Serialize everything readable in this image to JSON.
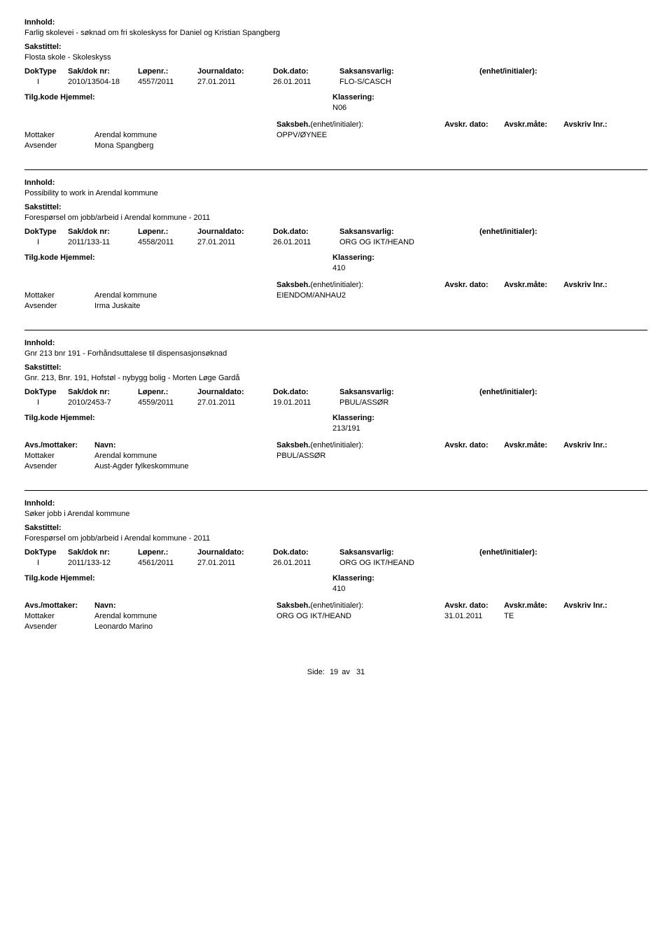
{
  "labels": {
    "innhold": "Innhold:",
    "sakstittel": "Sakstittel:",
    "doktype": "DokType",
    "sakdoknr": "Sak/dok nr:",
    "lopenr": "Løpenr.:",
    "journaldato": "Journaldato:",
    "dokdato": "Dok.dato:",
    "saksansvarlig": "Saksansvarlig:",
    "enhet": "(enhet/initialer):",
    "tilgkode": "Tilg.kode",
    "hjemmel": "Hjemmel:",
    "klassering": "Klassering:",
    "avsmottaker": "Avs./mottaker:",
    "navn": "Navn:",
    "saksbeh": "Saksbeh.",
    "saksbeh_enhet": "(enhet/initialer):",
    "avskrdato": "Avskr. dato:",
    "avskrmate": "Avskr.måte:",
    "avskrivlnr": "Avskriv lnr.:",
    "mottaker": "Mottaker",
    "avsender": "Avsender"
  },
  "records": [
    {
      "innhold": "Farlig skolevei - søknad om fri skoleskyss for Daniel og Kristian Spangberg",
      "sakstittel": "Flosta skole - Skoleskyss",
      "doktype": "I",
      "sakdoknr": "2010/13504-18",
      "lopenr": "4557/2011",
      "journaldato": "27.01.2011",
      "dokdato": "26.01.2011",
      "saksansvarlig": "FLO-S/CASCH",
      "klassering": "N06",
      "showPartyHeader": false,
      "parties": [
        {
          "role": "Mottaker",
          "navn": "Arendal kommune",
          "saksbeh": "OPPV/ØYNEE",
          "avskrdato": "",
          "avskrmate": "",
          "avskrivlnr": ""
        },
        {
          "role": "Avsender",
          "navn": "Mona Spangberg",
          "saksbeh": "",
          "avskrdato": "",
          "avskrmate": "",
          "avskrivlnr": ""
        }
      ]
    },
    {
      "innhold": "Possibility to work in Arendal kommune",
      "sakstittel": "Forespørsel om jobb/arbeid i Arendal kommune - 2011",
      "doktype": "I",
      "sakdoknr": "2011/133-11",
      "lopenr": "4558/2011",
      "journaldato": "27.01.2011",
      "dokdato": "26.01.2011",
      "saksansvarlig": "ORG OG IKT/HEAND",
      "klassering": "410",
      "showPartyHeader": false,
      "parties": [
        {
          "role": "Mottaker",
          "navn": "Arendal kommune",
          "saksbeh": "EIENDOM/ANHAU2",
          "avskrdato": "",
          "avskrmate": "",
          "avskrivlnr": ""
        },
        {
          "role": "Avsender",
          "navn": "Irma Juskaite",
          "saksbeh": "",
          "avskrdato": "",
          "avskrmate": "",
          "avskrivlnr": ""
        }
      ]
    },
    {
      "innhold": "Gnr 213 bnr 191 - Forhåndsuttalese til dispensasjonsøknad",
      "sakstittel": "Gnr. 213, Bnr. 191, Hofstøl - nybygg bolig - Morten Løge Gardå",
      "doktype": "I",
      "sakdoknr": "2010/2453-7",
      "lopenr": "4559/2011",
      "journaldato": "27.01.2011",
      "dokdato": "19.01.2011",
      "saksansvarlig": "PBUL/ASSØR",
      "klassering": "213/191",
      "showPartyHeader": true,
      "parties": [
        {
          "role": "Mottaker",
          "navn": "Arendal kommune",
          "saksbeh": "PBUL/ASSØR",
          "avskrdato": "",
          "avskrmate": "",
          "avskrivlnr": ""
        },
        {
          "role": "Avsender",
          "navn": "Aust-Agder fylkeskommune",
          "saksbeh": "",
          "avskrdato": "",
          "avskrmate": "",
          "avskrivlnr": ""
        }
      ]
    },
    {
      "innhold": "Søker jobb i Arendal kommune",
      "sakstittel": "Forespørsel om jobb/arbeid i Arendal kommune - 2011",
      "doktype": "I",
      "sakdoknr": "2011/133-12",
      "lopenr": "4561/2011",
      "journaldato": "27.01.2011",
      "dokdato": "26.01.2011",
      "saksansvarlig": "ORG OG IKT/HEAND",
      "klassering": "410",
      "showPartyHeader": true,
      "parties": [
        {
          "role": "Mottaker",
          "navn": "Arendal kommune",
          "saksbeh": "ORG OG IKT/HEAND",
          "avskrdato": "31.01.2011",
          "avskrmate": "TE",
          "avskrivlnr": ""
        },
        {
          "role": "Avsender",
          "navn": "Leonardo Marino",
          "saksbeh": "",
          "avskrdato": "",
          "avskrmate": "",
          "avskrivlnr": ""
        }
      ]
    }
  ],
  "footer": {
    "side": "Side:",
    "page": "19",
    "av": "av",
    "total": "31"
  }
}
